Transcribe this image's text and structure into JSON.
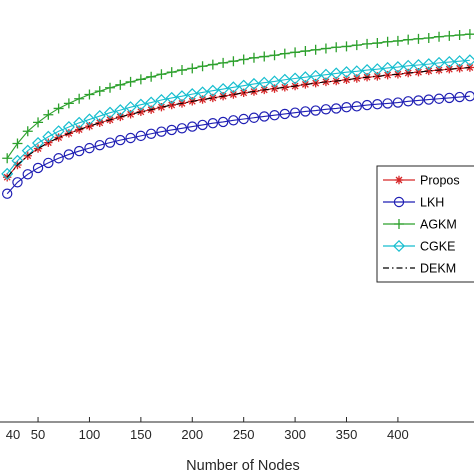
{
  "chart_data": {
    "type": "line",
    "title": "",
    "xlabel": "Number of Nodes",
    "ylabel": "",
    "xlim": [
      13,
      474
    ],
    "ylim": [
      0,
      100
    ],
    "x_ticks": [
      50,
      100,
      150,
      200,
      250,
      300,
      350,
      400
    ],
    "x_tick_labels": [
      "50",
      "100",
      "150",
      "200",
      "250",
      "300",
      "350",
      "400"
    ],
    "partial_tick_label": "40",
    "grid": false,
    "legend_position": "right",
    "x": [
      20,
      30,
      40,
      50,
      60,
      70,
      80,
      90,
      100,
      110,
      120,
      130,
      140,
      150,
      160,
      170,
      180,
      190,
      200,
      210,
      220,
      230,
      240,
      250,
      260,
      270,
      280,
      290,
      300,
      310,
      320,
      330,
      340,
      350,
      360,
      370,
      380,
      390,
      400,
      410,
      420,
      430,
      440,
      450,
      460,
      470
    ],
    "series": [
      {
        "name": "Propos",
        "color": "#d62728",
        "marker": "asterisk",
        "linestyle": "solid",
        "values": [
          58,
          60.9,
          63.1,
          64.8,
          66.2,
          67.4,
          68.4,
          69.3,
          70.1,
          70.9,
          71.6,
          72.3,
          72.9,
          73.5,
          74.0,
          74.6,
          75.1,
          75.5,
          76.0,
          76.4,
          76.8,
          77.2,
          77.6,
          78.0,
          78.3,
          78.7,
          79.0,
          79.3,
          79.6,
          80.0,
          80.3,
          80.6,
          80.8,
          81.1,
          81.4,
          81.7,
          81.9,
          82.2,
          82.4,
          82.7,
          82.9,
          83.2,
          83.4,
          83.6,
          83.8,
          84.0
        ]
      },
      {
        "name": "LKH",
        "color": "#1f1fb4",
        "marker": "circle",
        "linestyle": "solid",
        "values": [
          54.1,
          56.8,
          58.7,
          60.2,
          61.4,
          62.5,
          63.4,
          64.2,
          64.9,
          65.6,
          66.2,
          66.8,
          67.3,
          67.8,
          68.3,
          68.8,
          69.2,
          69.6,
          70.0,
          70.4,
          70.8,
          71.1,
          71.5,
          71.8,
          72.1,
          72.4,
          72.7,
          73.0,
          73.3,
          73.6,
          73.8,
          74.1,
          74.3,
          74.6,
          74.8,
          75.1,
          75.3,
          75.5,
          75.7,
          76.0,
          76.2,
          76.4,
          76.6,
          76.8,
          77.0,
          77.2
        ]
      },
      {
        "name": "AGKM",
        "color": "#2ca02c",
        "marker": "plus",
        "linestyle": "solid",
        "values": [
          62.5,
          66,
          68.9,
          71.0,
          72.8,
          74.3,
          75.5,
          76.6,
          77.6,
          78.4,
          79.2,
          79.9,
          80.6,
          81.2,
          81.8,
          82.4,
          82.9,
          83.4,
          83.8,
          84.3,
          84.7,
          85.1,
          85.5,
          85.9,
          86.3,
          86.6,
          86.9,
          87.3,
          87.6,
          87.9,
          88.2,
          88.5,
          88.8,
          89.0,
          89.3,
          89.6,
          89.8,
          90.1,
          90.3,
          90.6,
          90.8,
          91.0,
          91.3,
          91.5,
          91.7,
          91.9
        ]
      },
      {
        "name": "CGKE",
        "color": "#17becf",
        "marker": "diamond",
        "linestyle": "solid",
        "values": [
          58.8,
          61.9,
          64.3,
          66.1,
          67.6,
          68.9,
          69.9,
          70.9,
          71.7,
          72.5,
          73.3,
          73.9,
          74.6,
          75.2,
          75.7,
          76.3,
          76.8,
          77.2,
          77.7,
          78.1,
          78.5,
          78.9,
          79.3,
          79.7,
          80.1,
          80.4,
          80.7,
          81.1,
          81.4,
          81.7,
          82.0,
          82.3,
          82.6,
          82.9,
          83.1,
          83.4,
          83.6,
          83.9,
          84.1,
          84.4,
          84.6,
          84.8,
          85.1,
          85.3,
          85.5,
          85.7
        ]
      },
      {
        "name": "DEKM",
        "color": "#000000",
        "marker": "none",
        "linestyle": "dash-dot",
        "values": [
          58,
          60.9,
          63.1,
          64.8,
          66.2,
          67.4,
          68.4,
          69.3,
          70.1,
          70.9,
          71.6,
          72.3,
          72.9,
          73.5,
          74.0,
          74.6,
          75.1,
          75.5,
          76.0,
          76.4,
          76.8,
          77.2,
          77.6,
          78.0,
          78.3,
          78.7,
          79.0,
          79.3,
          79.6,
          80.0,
          80.3,
          80.6,
          80.8,
          81.1,
          81.4,
          81.7,
          81.9,
          82.2,
          82.4,
          82.7,
          82.9,
          83.2,
          83.4,
          83.6,
          83.8,
          84.0
        ]
      }
    ]
  }
}
